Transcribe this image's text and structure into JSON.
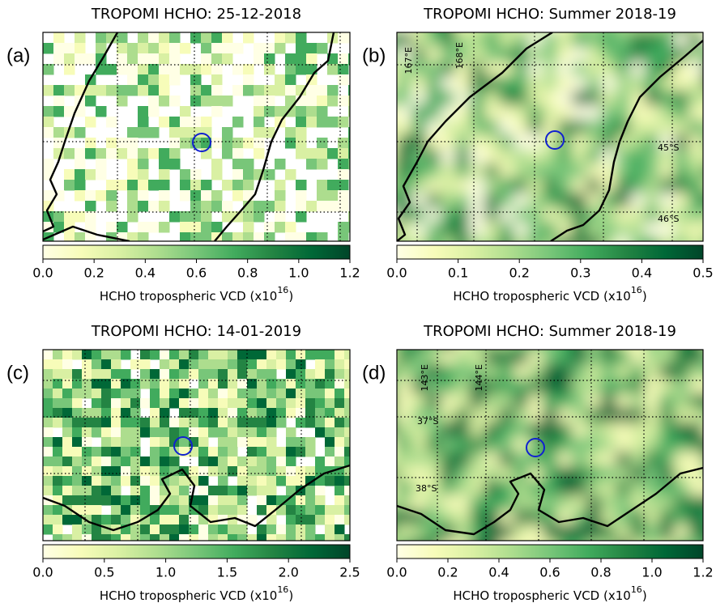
{
  "panels": [
    {
      "label": "(a)",
      "title": "TROPOMI HCHO: 25-12-2018",
      "colorbar": {
        "clim": [
          0,
          1.2
        ],
        "ticks": [
          {
            "value": 0,
            "label": "0.0"
          },
          0.2,
          0.4,
          0.6,
          0.8,
          {
            "value": 1,
            "label": "1.0"
          },
          1.2
        ],
        "label": "HCHO tropospheric VCD (x10",
        "label_exponent": "16",
        "label_suffix": ")"
      },
      "grid_labels": []
    },
    {
      "label": "(b)",
      "title": "TROPOMI HCHO: Summer 2018-19",
      "colorbar": {
        "clim": [
          0,
          0.5
        ],
        "ticks": [
          {
            "value": 0,
            "label": "0.0"
          },
          0.1,
          0.2,
          0.3,
          0.4,
          0.5
        ],
        "label": "HCHO tropospheric VCD (x10",
        "label_exponent": "16",
        "label_suffix": ")"
      },
      "grid_labels": [
        "167°E",
        "168°E",
        "45°S",
        "46°S"
      ]
    },
    {
      "label": "(c)",
      "title": "TROPOMI HCHO: 14-01-2019",
      "colorbar": {
        "clim": [
          0,
          2.5
        ],
        "ticks": [
          {
            "value": 0,
            "label": "0.0"
          },
          0.5,
          {
            "value": 1,
            "label": "1.0"
          },
          1.5,
          {
            "value": 2,
            "label": "2.0"
          },
          2.5
        ],
        "label": "HCHO tropospheric VCD (x10",
        "label_exponent": "16",
        "label_suffix": ")"
      },
      "grid_labels": []
    },
    {
      "label": "(d)",
      "title": "TROPOMI HCHO: Summer 2018-19",
      "colorbar": {
        "clim": [
          0,
          1.2
        ],
        "ticks": [
          {
            "value": 0,
            "label": "0.0"
          },
          0.2,
          0.4,
          0.6,
          0.8,
          {
            "value": 1,
            "label": "1.0"
          },
          1.2
        ],
        "label": "HCHO tropospheric VCD (x10",
        "label_exponent": "16",
        "label_suffix": ")"
      },
      "grid_labels": [
        "143°E",
        "144°E",
        "37°S",
        "38°S"
      ]
    }
  ]
}
